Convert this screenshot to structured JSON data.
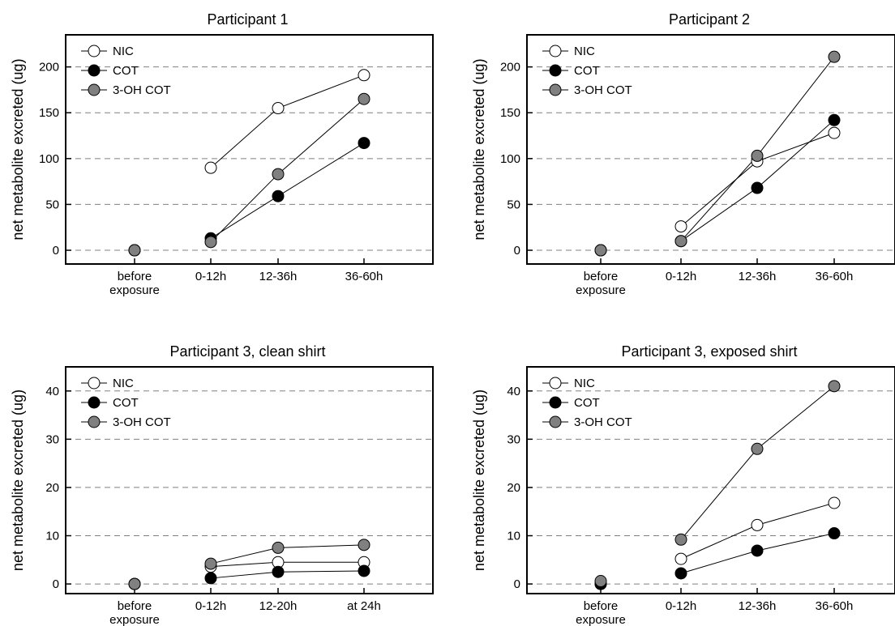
{
  "chart_data": [
    {
      "type": "line",
      "title": "Participant 1",
      "ylabel": "net metabolite excreted (ug)",
      "xlabel": "",
      "categories": [
        "before\nexposure",
        "0-12h",
        "12-36h",
        "36-60h"
      ],
      "ylim": [
        -15,
        235
      ],
      "yticks": [
        0,
        50,
        100,
        150,
        200
      ],
      "grid": "horizontal-dashed",
      "legend": "top-left",
      "series": [
        {
          "name": "NIC",
          "values": [
            0,
            90,
            155,
            191
          ],
          "fill": "#ffffff"
        },
        {
          "name": "COT",
          "values": [
            0,
            13,
            59,
            117
          ],
          "fill": "#000000"
        },
        {
          "name": "3-OH COT",
          "values": [
            0,
            9,
            83,
            165
          ],
          "fill": "#808080"
        }
      ]
    },
    {
      "type": "line",
      "title": "Participant 2",
      "ylabel": "net metabolite excreted (ug)",
      "xlabel": "",
      "categories": [
        "before\nexposure",
        "0-12h",
        "12-36h",
        "36-60h"
      ],
      "ylim": [
        -15,
        235
      ],
      "yticks": [
        0,
        50,
        100,
        150,
        200
      ],
      "grid": "horizontal-dashed",
      "legend": "top-left",
      "series": [
        {
          "name": "NIC",
          "values": [
            0,
            26,
            97,
            128
          ],
          "fill": "#ffffff"
        },
        {
          "name": "COT",
          "values": [
            0,
            10,
            68,
            142
          ],
          "fill": "#000000"
        },
        {
          "name": "3-OH COT",
          "values": [
            0,
            10,
            103,
            211
          ],
          "fill": "#808080"
        }
      ]
    },
    {
      "type": "line",
      "title": "Participant 3, clean shirt",
      "ylabel": "net metabolite excreted (ug)",
      "xlabel": "",
      "categories": [
        "before\nexposure",
        "0-12h",
        "12-20h",
        "at 24h"
      ],
      "ylim": [
        -2,
        45
      ],
      "yticks": [
        0,
        10,
        20,
        30,
        40
      ],
      "grid": "horizontal-dashed",
      "legend": "top-left",
      "series": [
        {
          "name": "NIC",
          "values": [
            0,
            3.6,
            4.5,
            4.5
          ],
          "fill": "#ffffff"
        },
        {
          "name": "COT",
          "values": [
            0,
            1.2,
            2.5,
            2.7
          ],
          "fill": "#000000"
        },
        {
          "name": "3-OH COT",
          "values": [
            0,
            4.2,
            7.5,
            8.1
          ],
          "fill": "#808080"
        }
      ]
    },
    {
      "type": "line",
      "title": "Participant 3, exposed shirt",
      "ylabel": "net metabolite excreted (ug)",
      "xlabel": "",
      "categories": [
        "before\nexposure",
        "0-12h",
        "12-36h",
        "36-60h"
      ],
      "ylim": [
        -2,
        45
      ],
      "yticks": [
        0,
        10,
        20,
        30,
        40
      ],
      "grid": "horizontal-dashed",
      "legend": "top-left",
      "series": [
        {
          "name": "NIC",
          "values": [
            0,
            5.2,
            12.2,
            16.8
          ],
          "fill": "#ffffff"
        },
        {
          "name": "COT",
          "values": [
            0,
            2.2,
            6.9,
            10.5
          ],
          "fill": "#000000"
        },
        {
          "name": "3-OH COT",
          "values": [
            0.6,
            9.2,
            28,
            41
          ],
          "fill": "#808080"
        }
      ]
    }
  ]
}
